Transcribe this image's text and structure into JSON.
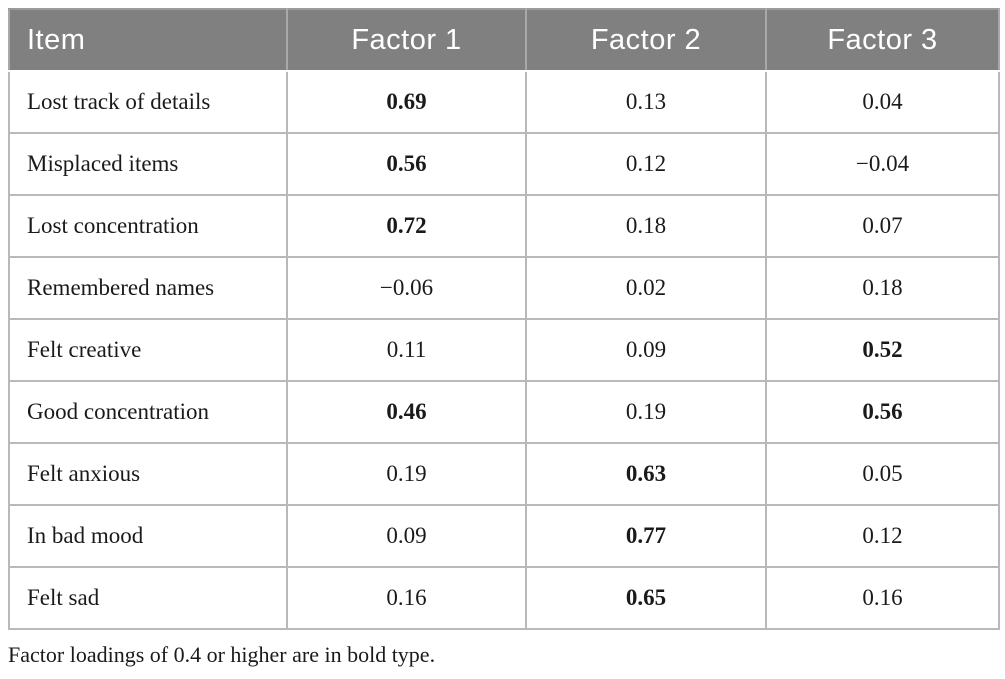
{
  "table": {
    "columns": [
      "Item",
      "Factor 1",
      "Factor 2",
      "Factor 3"
    ],
    "rows": [
      {
        "item": "Lost track of details",
        "values": [
          "0.69",
          "0.13",
          "0.04"
        ],
        "bold": [
          true,
          false,
          false
        ]
      },
      {
        "item": "Misplaced items",
        "values": [
          "0.56",
          "0.12",
          "−0.04"
        ],
        "bold": [
          true,
          false,
          false
        ]
      },
      {
        "item": "Lost concentration",
        "values": [
          "0.72",
          "0.18",
          "0.07"
        ],
        "bold": [
          true,
          false,
          false
        ]
      },
      {
        "item": "Remembered names",
        "values": [
          "−0.06",
          "0.02",
          "0.18"
        ],
        "bold": [
          false,
          false,
          false
        ]
      },
      {
        "item": "Felt creative",
        "values": [
          "0.11",
          "0.09",
          "0.52"
        ],
        "bold": [
          false,
          false,
          true
        ]
      },
      {
        "item": "Good concentration",
        "values": [
          "0.46",
          "0.19",
          "0.56"
        ],
        "bold": [
          true,
          false,
          true
        ]
      },
      {
        "item": "Felt anxious",
        "values": [
          "0.19",
          "0.63",
          "0.05"
        ],
        "bold": [
          false,
          true,
          false
        ]
      },
      {
        "item": "In bad mood",
        "values": [
          "0.09",
          "0.77",
          "0.12"
        ],
        "bold": [
          false,
          true,
          false
        ]
      },
      {
        "item": "Felt sad",
        "values": [
          "0.16",
          "0.65",
          "0.16"
        ],
        "bold": [
          false,
          true,
          false
        ]
      }
    ]
  },
  "footnote": "Factor loadings of 0.4 or higher are in bold type.",
  "colors": {
    "header_background": "#808080",
    "header_text": "#ffffff",
    "body_text": "#1a1a1a",
    "border": "#b9b9b9"
  }
}
